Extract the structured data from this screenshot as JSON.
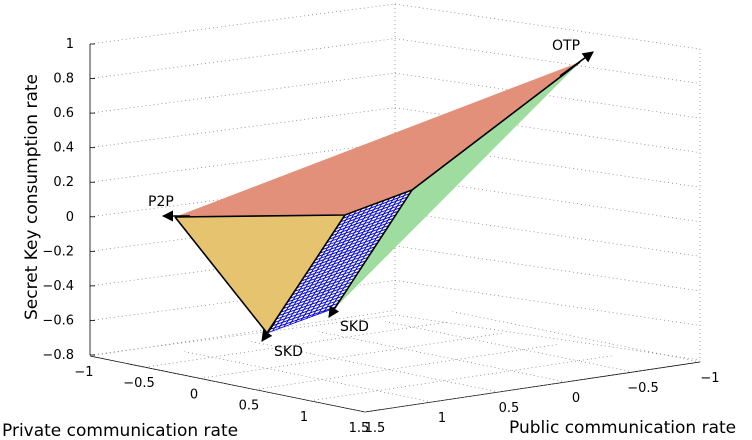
{
  "chart_data": {
    "type": "3d-surface",
    "axes": {
      "z": {
        "label": "Secret Key consumption rate",
        "range": [
          -0.8,
          1
        ],
        "ticks": [
          "1",
          "0.8",
          "0.6",
          "0.4",
          "0.2",
          "0",
          "-0.2",
          "-0.4",
          "-0.6",
          "-0.8"
        ]
      },
      "x": {
        "label": "Private communication rate",
        "range": [
          -1,
          1.5
        ],
        "ticks": [
          "-1",
          "-0.5",
          "0",
          "0.5",
          "1",
          "1.5"
        ]
      },
      "y": {
        "label": "Public communication rate",
        "range": [
          -1,
          1.5
        ],
        "ticks": [
          "1.5",
          "1",
          "0.5",
          "0",
          "-0.5",
          "-1"
        ]
      }
    },
    "grid": true,
    "regions": [
      {
        "name": "top-face",
        "color": "#e3907a"
      },
      {
        "name": "left-face",
        "color": "#e6c46f"
      },
      {
        "name": "right-face",
        "color": "#9fdc9f"
      },
      {
        "name": "hatched-face",
        "color": "#0000cc"
      }
    ],
    "arrows": [
      {
        "label": "OTP"
      },
      {
        "label": "P2P"
      },
      {
        "label": "SKD"
      },
      {
        "label": "SKD"
      }
    ]
  }
}
